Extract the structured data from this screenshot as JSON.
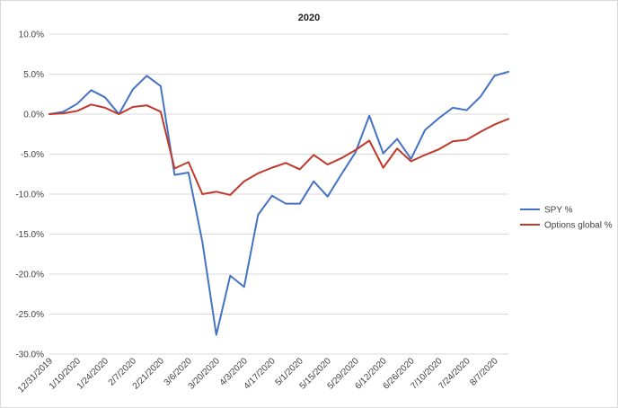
{
  "chart_data": {
    "type": "line",
    "title": "2020",
    "xlabel": "",
    "ylabel": "",
    "ylim": [
      -30,
      10
    ],
    "y_ticks": [
      10,
      5,
      0,
      -5,
      -10,
      -15,
      -20,
      -25,
      -30
    ],
    "y_tick_labels": [
      "10.0%",
      "5.0%",
      "0.0%",
      "-5.0%",
      "-10.0%",
      "-15.0%",
      "-20.0%",
      "-25.0%",
      "-30.0%"
    ],
    "grid": "horizontal",
    "legend_position": "right",
    "x": [
      "12/31/2019",
      "1/3/2020",
      "1/10/2020",
      "1/17/2020",
      "1/24/2020",
      "1/31/2020",
      "2/7/2020",
      "2/14/2020",
      "2/21/2020",
      "2/28/2020",
      "3/6/2020",
      "3/13/2020",
      "3/20/2020",
      "3/27/2020",
      "4/3/2020",
      "4/10/2020",
      "4/17/2020",
      "4/24/2020",
      "5/1/2020",
      "5/8/2020",
      "5/15/2020",
      "5/22/2020",
      "5/29/2020",
      "6/5/2020",
      "6/12/2020",
      "6/19/2020",
      "6/26/2020",
      "7/3/2020",
      "7/10/2020",
      "7/17/2020",
      "7/24/2020",
      "7/31/2020",
      "8/7/2020",
      "8/14/2020"
    ],
    "x_tick_labels": [
      "12/31/2019",
      "1/10/2020",
      "1/24/2020",
      "2/7/2020",
      "2/21/2020",
      "3/6/2020",
      "3/20/2020",
      "4/3/2020",
      "4/17/2020",
      "5/1/2020",
      "5/15/2020",
      "5/29/2020",
      "6/12/2020",
      "6/26/2020",
      "7/10/2020",
      "7/24/2020",
      "8/7/2020"
    ],
    "series": [
      {
        "name": "SPY %",
        "color": "#4472C4",
        "values": [
          0.0,
          0.3,
          1.3,
          3.0,
          2.1,
          0.0,
          3.1,
          4.8,
          3.5,
          -7.6,
          -7.3,
          -16.0,
          -27.6,
          -20.2,
          -21.6,
          -12.6,
          -10.2,
          -11.2,
          -11.2,
          -8.4,
          -10.3,
          -7.5,
          -4.8,
          -0.2,
          -4.9,
          -3.1,
          -5.6,
          -2.0,
          -0.5,
          0.8,
          0.5,
          2.2,
          4.8,
          5.3
        ]
      },
      {
        "name": "Options global %",
        "color": "#C0392B",
        "values": [
          0.0,
          0.1,
          0.4,
          1.2,
          0.8,
          0.0,
          0.9,
          1.1,
          0.3,
          -6.8,
          -6.0,
          -10.0,
          -9.7,
          -10.1,
          -8.4,
          -7.4,
          -6.7,
          -6.1,
          -6.9,
          -5.1,
          -6.3,
          -5.5,
          -4.5,
          -3.3,
          -6.7,
          -4.3,
          -5.9,
          -5.1,
          -4.4,
          -3.4,
          -3.2,
          -2.2,
          -1.3,
          -0.6
        ]
      }
    ]
  }
}
